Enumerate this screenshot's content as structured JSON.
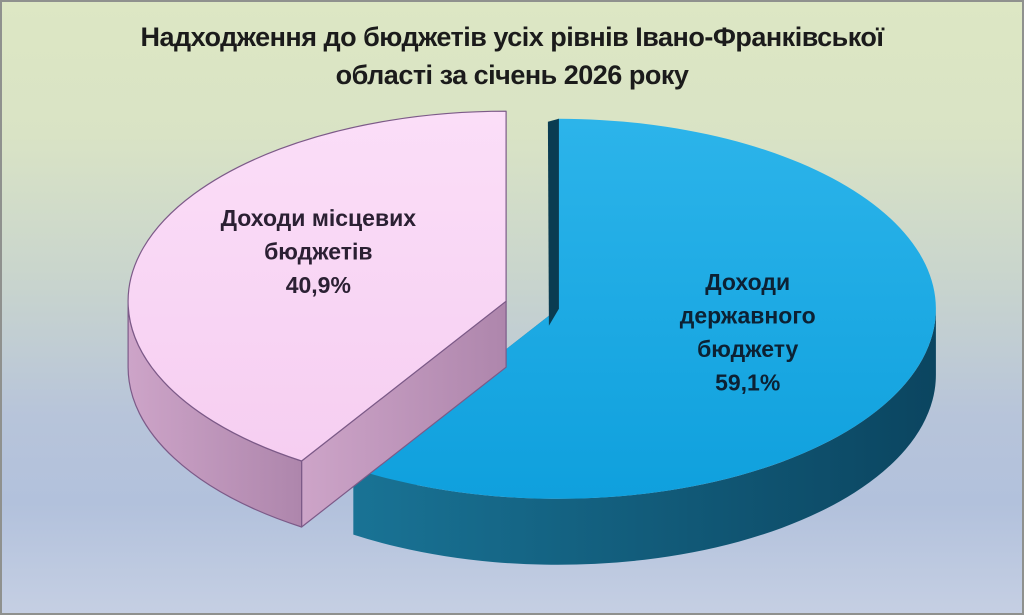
{
  "title": {
    "lines": [
      "Надходження до бюджетів усіх рівнів Івано-Франківської",
      "області за січень 2026 року"
    ],
    "full": "Надходження до бюджетів усіх рівнів Івано-Франківської області за січень 2026 року"
  },
  "chart_data": {
    "type": "pie",
    "style": "3d-exploded",
    "title": "Надходження до бюджетів усіх рівнів Івано-Франківської області за січень 2026 року",
    "unit": "%",
    "start_angle_deg": 0,
    "clockwise": true,
    "legend": "none",
    "slices": [
      {
        "id": "state-budget",
        "name": "Доходи державного бюджету",
        "label_lines": [
          "Доходи",
          "державного",
          "бюджету"
        ],
        "value": 59.1,
        "value_label": "59,1%",
        "face_color": "#2cb4ea",
        "face_color2": "#0fa0dd",
        "side_color": "#197395",
        "side_color2": "#0b4560",
        "cut_face_color": "#0a3c52",
        "cut_face_visible": true,
        "outline_color": "none",
        "text_color": "#0c2133"
      },
      {
        "id": "local-budget",
        "name": "Доходи місцевих бюджетів",
        "label_lines": [
          "Доходи місцевих",
          "бюджетів"
        ],
        "value": 40.9,
        "value_label": "40,9%",
        "face_color": "#fbdef8",
        "face_color2": "#f6cef1",
        "side_color": "#cda4c8",
        "side_color2": "#ae86ac",
        "cut_face_color": "#a478a1",
        "cut_face_visible": false,
        "outline_color": "#7c5a88",
        "text_color": "#2b2033"
      }
    ],
    "colors": {
      "background_top": "#dde7c4",
      "background_bottom": "#b2c1dc",
      "frame_border": "#8f918e"
    }
  }
}
